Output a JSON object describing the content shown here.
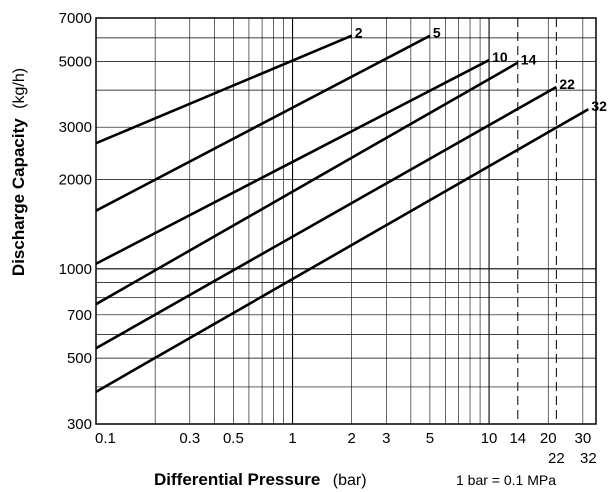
{
  "chart_data": {
    "type": "line",
    "xscale": "log",
    "yscale": "log",
    "xlim": [
      0.1,
      35
    ],
    "ylim": [
      300,
      7000
    ],
    "xlabel": "Differential Pressure",
    "xlabel_unit": "(bar)",
    "ylabel": "Discharge Capacity",
    "ylabel_unit": "(kg/h)",
    "note": "1 bar = 0.1 MPa",
    "grid": true,
    "x_ticks": [
      {
        "value": 0.1,
        "label": "0.1"
      },
      {
        "value": 0.3,
        "label": "0.3"
      },
      {
        "value": 0.5,
        "label": "0.5"
      },
      {
        "value": 1,
        "label": "1"
      },
      {
        "value": 2,
        "label": "2"
      },
      {
        "value": 3,
        "label": "3"
      },
      {
        "value": 5,
        "label": "5"
      },
      {
        "value": 10,
        "label": "10"
      },
      {
        "value": 14,
        "label": "14"
      },
      {
        "value": 20,
        "label": "20"
      },
      {
        "value": 30,
        "label": "30"
      }
    ],
    "x_ticks_second_row": [
      {
        "value": 22,
        "label": "22"
      },
      {
        "value": 32,
        "label": "32"
      }
    ],
    "y_ticks": [
      {
        "value": 300,
        "label": "300"
      },
      {
        "value": 500,
        "label": "500"
      },
      {
        "value": 700,
        "label": "700"
      },
      {
        "value": 1000,
        "label": "1000"
      },
      {
        "value": 2000,
        "label": "2000"
      },
      {
        "value": 3000,
        "label": "3000"
      },
      {
        "value": 5000,
        "label": "5000"
      },
      {
        "value": 7000,
        "label": "7000"
      }
    ],
    "reference_lines_x": [
      14,
      22
    ],
    "series": [
      {
        "name": "2",
        "points": [
          [
            0.1,
            2650
          ],
          [
            2,
            6100
          ]
        ]
      },
      {
        "name": "5",
        "points": [
          [
            0.1,
            1570
          ],
          [
            5,
            6100
          ]
        ]
      },
      {
        "name": "10",
        "points": [
          [
            0.1,
            1040
          ],
          [
            10,
            5050
          ]
        ]
      },
      {
        "name": "14",
        "points": [
          [
            0.1,
            760
          ],
          [
            14,
            4950
          ]
        ]
      },
      {
        "name": "22",
        "points": [
          [
            0.1,
            540
          ],
          [
            22,
            4100
          ]
        ]
      },
      {
        "name": "32",
        "points": [
          [
            0.1,
            385
          ],
          [
            32,
            3450
          ]
        ]
      }
    ]
  }
}
